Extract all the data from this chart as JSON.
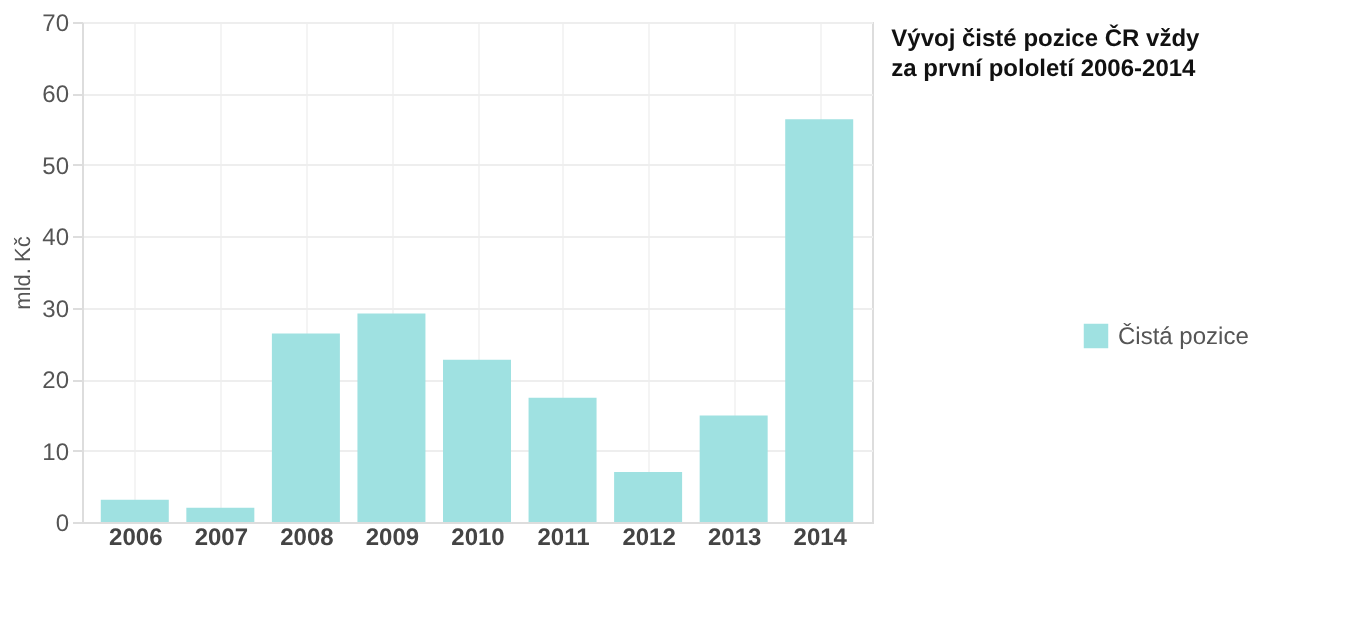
{
  "chart_data": {
    "type": "bar",
    "title": "Vývoj čisté pozice ČR vždy za první pololetí 2006-2014",
    "ylabel": "mld. Kč",
    "categories": [
      "2006",
      "2007",
      "2008",
      "2009",
      "2010",
      "2011",
      "2012",
      "2013",
      "2014"
    ],
    "series": [
      {
        "name": "Čistá pozice",
        "color": "#9fe1e1",
        "values": [
          3.1,
          2.0,
          26.4,
          29.2,
          22.7,
          17.4,
          7.0,
          14.9,
          56.4
        ]
      }
    ],
    "ylim": [
      0,
      70
    ],
    "yticks": [
      0,
      10,
      20,
      30,
      40,
      50,
      60,
      70
    ],
    "grid": true,
    "legend": "right"
  }
}
